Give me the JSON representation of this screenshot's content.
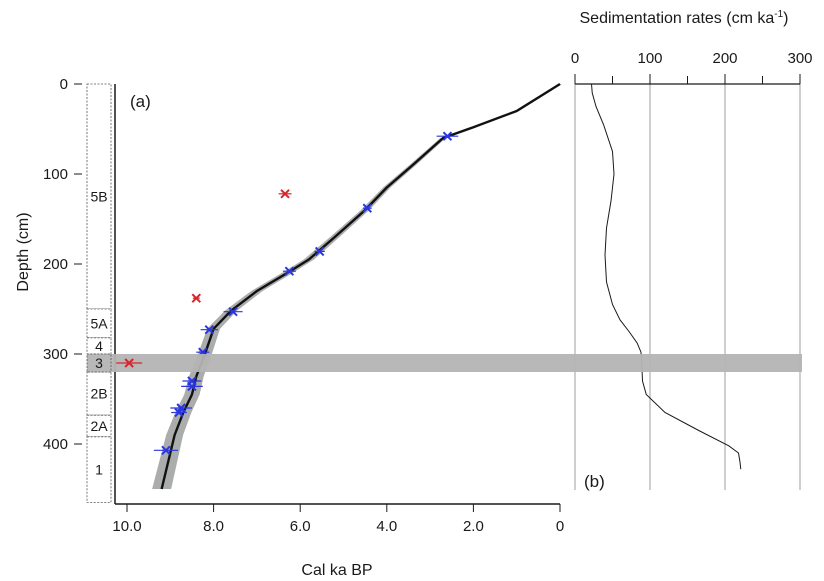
{
  "chart_data": [
    {
      "type": "scatter",
      "panel_label": "(a)",
      "xlabel": "Cal ka BP",
      "ylabel": "Depth (cm)",
      "x_reversed": true,
      "y_reversed": true,
      "xlim": [
        0,
        10.3
      ],
      "ylim": [
        0,
        450
      ],
      "x_ticks": [
        10.0,
        8.0,
        6.0,
        4.0,
        2.0,
        0
      ],
      "x_tick_labels": [
        "10.0",
        "8.0",
        "6.0",
        "4.0",
        "2.0",
        "0"
      ],
      "y_ticks": [
        0,
        100,
        200,
        300,
        400
      ],
      "units": [
        {
          "label": "5B",
          "top": 0,
          "bottom": 250
        },
        {
          "label": "5A",
          "top": 250,
          "bottom": 282
        },
        {
          "label": "4",
          "top": 282,
          "bottom": 300
        },
        {
          "label": "3",
          "top": 300,
          "bottom": 320
        },
        {
          "label": "2B",
          "top": 320,
          "bottom": 368
        },
        {
          "label": "2A",
          "top": 368,
          "bottom": 392
        },
        {
          "label": "1",
          "top": 392,
          "bottom": 465
        }
      ],
      "highlight_band": {
        "top": 300,
        "bottom": 320,
        "color": "#b4b4b4"
      },
      "series": [
        {
          "name": "",
          "kind": "age-depth model",
          "color": "#111111",
          "envelope_color": "#8f9290",
          "x": [
            0.0,
            1.0,
            2.0,
            2.7,
            3.4,
            4.0,
            4.5,
            5.2,
            5.8,
            6.3,
            7.0,
            7.6,
            8.0,
            8.2,
            8.4,
            8.5,
            8.7,
            8.9,
            9.0,
            9.1,
            9.2
          ],
          "y": [
            0,
            30,
            48,
            60,
            90,
            115,
            140,
            170,
            195,
            210,
            230,
            252,
            272,
            300,
            325,
            345,
            365,
            390,
            410,
            430,
            450
          ]
        },
        {
          "name": "",
          "kind": "accepted dates",
          "color": "#2a36e0",
          "points": [
            {
              "x": 2.6,
              "y": 58,
              "err": 0.25
            },
            {
              "x": 4.45,
              "y": 138,
              "err": 0.1
            },
            {
              "x": 5.55,
              "y": 186,
              "err": 0.12
            },
            {
              "x": 6.25,
              "y": 208,
              "err": 0.15
            },
            {
              "x": 7.55,
              "y": 253,
              "err": 0.22
            },
            {
              "x": 8.1,
              "y": 273,
              "err": 0.2
            },
            {
              "x": 8.25,
              "y": 298,
              "err": 0.15
            },
            {
              "x": 8.5,
              "y": 330,
              "err": 0.22
            },
            {
              "x": 8.5,
              "y": 336,
              "err": 0.25
            },
            {
              "x": 8.75,
              "y": 360,
              "err": 0.25
            },
            {
              "x": 8.8,
              "y": 365,
              "err": 0.18
            },
            {
              "x": 9.1,
              "y": 407,
              "err": 0.28
            }
          ]
        },
        {
          "name": "",
          "kind": "rejected dates",
          "color": "#d8262c",
          "points": [
            {
              "x": 6.35,
              "y": 122,
              "err": 0.15
            },
            {
              "x": 8.4,
              "y": 238,
              "err": 0.08
            },
            {
              "x": 9.95,
              "y": 310,
              "err": 0.3
            }
          ]
        }
      ]
    },
    {
      "type": "line",
      "panel_label": "(b)",
      "title": "Sedimentation rates (cm ka",
      "title_superscript": "-1",
      "title_close": ")",
      "xlim": [
        0,
        300
      ],
      "x_ticks": [
        0,
        100,
        200,
        300
      ],
      "x_minor_ticks": [
        50,
        150,
        250
      ],
      "ylim": [
        0,
        450
      ],
      "y_reversed": true,
      "grid": true,
      "series": [
        {
          "name": "",
          "color": "#1a1a1a",
          "x": [
            22,
            23,
            28,
            38,
            50,
            52,
            48,
            42,
            40,
            42,
            50,
            60,
            72,
            83,
            88,
            89,
            90,
            95,
            120,
            165,
            205,
            218,
            220,
            221
          ],
          "y": [
            0,
            10,
            25,
            45,
            75,
            100,
            130,
            160,
            190,
            220,
            245,
            262,
            275,
            288,
            298,
            310,
            330,
            345,
            365,
            385,
            402,
            410,
            420,
            428
          ]
        }
      ]
    }
  ]
}
